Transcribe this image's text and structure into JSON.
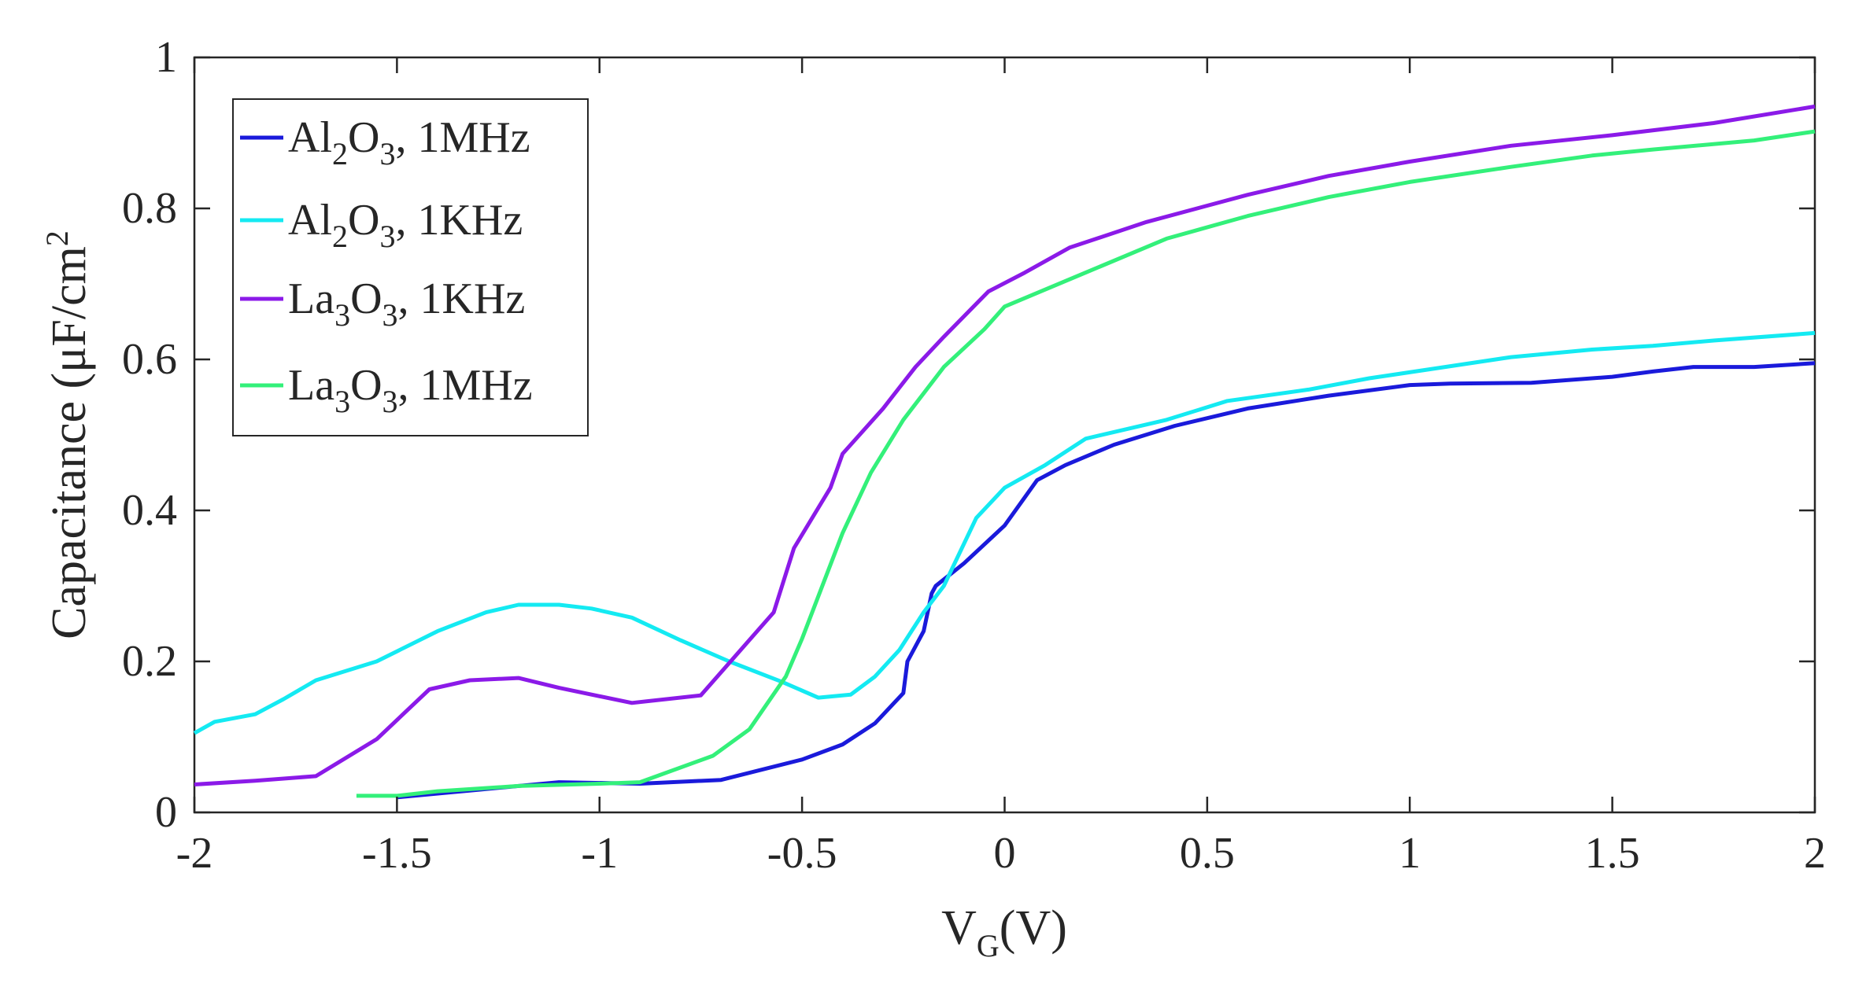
{
  "chart_data": {
    "type": "line",
    "title": "",
    "xlabel": {
      "base": "V",
      "sub": "G",
      "rest": "(V)"
    },
    "ylabel": {
      "text": "Capacitance (μF/cm",
      "sup": "2"
    },
    "xlim": [
      -2,
      2
    ],
    "ylim": [
      0,
      1
    ],
    "x_ticks": [
      -2,
      -1.5,
      -1,
      -0.5,
      0,
      0.5,
      1,
      1.5,
      2
    ],
    "x_tick_labels": [
      "-2",
      "-1.5",
      "-1",
      "-0.5",
      "0",
      "0.5",
      "1",
      "1.5",
      "2"
    ],
    "y_ticks": [
      0,
      0.2,
      0.4,
      0.6,
      0.8,
      1
    ],
    "y_tick_labels": [
      "0",
      "0.2",
      "0.4",
      "0.6",
      "0.8",
      "1"
    ],
    "grid": false,
    "legend_position": "top-left",
    "series": [
      {
        "name": "Al2O3, 1MHz",
        "legend": {
          "a": "Al",
          "a_sub": "2",
          "b": "O",
          "b_sub": "3",
          "rest": ", 1MHz"
        },
        "color": "#1a1adb",
        "x": [
          -1.5,
          -1.3,
          -1.1,
          -0.9,
          -0.7,
          -0.5,
          -0.4,
          -0.32,
          -0.25,
          -0.24,
          -0.2,
          -0.18,
          -0.17,
          -0.1,
          0,
          0.08,
          0.15,
          0.27,
          0.42,
          0.6,
          0.8,
          1.0,
          1.1,
          1.3,
          1.5,
          1.6,
          1.7,
          1.85,
          2.0
        ],
        "y": [
          0.02,
          0.03,
          0.04,
          0.038,
          0.043,
          0.07,
          0.09,
          0.118,
          0.158,
          0.2,
          0.24,
          0.29,
          0.3,
          0.33,
          0.38,
          0.44,
          0.46,
          0.487,
          0.512,
          0.535,
          0.552,
          0.566,
          0.568,
          0.569,
          0.577,
          0.584,
          0.59,
          0.59,
          0.595
        ]
      },
      {
        "name": "Al2O3, 1KHz",
        "legend": {
          "a": "Al",
          "a_sub": "2",
          "b": "O",
          "b_sub": "3",
          "rest": ", 1KHz"
        },
        "color": "#14eaf2",
        "x": [
          -2.0,
          -1.95,
          -1.85,
          -1.78,
          -1.7,
          -1.55,
          -1.4,
          -1.28,
          -1.2,
          -1.1,
          -1.02,
          -0.92,
          -0.8,
          -0.68,
          -0.55,
          -0.46,
          -0.38,
          -0.32,
          -0.26,
          -0.2,
          -0.15,
          -0.07,
          0,
          0.1,
          0.2,
          0.4,
          0.55,
          0.75,
          0.9,
          1.05,
          1.25,
          1.45,
          1.6,
          1.75,
          2.0
        ],
        "y": [
          0.105,
          0.12,
          0.13,
          0.15,
          0.175,
          0.2,
          0.24,
          0.265,
          0.275,
          0.275,
          0.27,
          0.258,
          0.228,
          0.2,
          0.173,
          0.152,
          0.156,
          0.18,
          0.215,
          0.265,
          0.3,
          0.39,
          0.43,
          0.46,
          0.495,
          0.52,
          0.545,
          0.56,
          0.575,
          0.587,
          0.603,
          0.613,
          0.618,
          0.625,
          0.635
        ]
      },
      {
        "name": "La3O3, 1KHz",
        "legend": {
          "a": "La",
          "a_sub": "3",
          "b": "O",
          "b_sub": "3",
          "rest": ", 1KHz"
        },
        "color": "#8b1ae8",
        "x": [
          -2.0,
          -1.85,
          -1.7,
          -1.55,
          -1.42,
          -1.32,
          -1.2,
          -1.1,
          -0.92,
          -0.75,
          -0.57,
          -0.52,
          -0.43,
          -0.4,
          -0.3,
          -0.22,
          -0.15,
          -0.04,
          0.05,
          0.16,
          0.35,
          0.6,
          0.8,
          1.0,
          1.25,
          1.5,
          1.75,
          2.0
        ],
        "y": [
          0.037,
          0.042,
          0.048,
          0.097,
          0.163,
          0.175,
          0.178,
          0.165,
          0.145,
          0.155,
          0.265,
          0.35,
          0.43,
          0.475,
          0.535,
          0.59,
          0.63,
          0.69,
          0.715,
          0.748,
          0.782,
          0.818,
          0.843,
          0.862,
          0.883,
          0.897,
          0.913,
          0.935
        ]
      },
      {
        "name": "La3O3, 1MHz",
        "legend": {
          "a": "La",
          "a_sub": "3",
          "b": "O",
          "b_sub": "3",
          "rest": ", 1MHz"
        },
        "color": "#33f07a",
        "x": [
          -1.6,
          -1.5,
          -1.4,
          -1.2,
          -1.0,
          -0.9,
          -0.72,
          -0.63,
          -0.54,
          -0.5,
          -0.4,
          -0.33,
          -0.25,
          -0.15,
          -0.05,
          0,
          0.2,
          0.4,
          0.6,
          0.8,
          1.0,
          1.25,
          1.45,
          1.6,
          1.85,
          2.0
        ],
        "y": [
          0.022,
          0.022,
          0.028,
          0.035,
          0.038,
          0.04,
          0.075,
          0.11,
          0.18,
          0.23,
          0.37,
          0.45,
          0.52,
          0.59,
          0.64,
          0.67,
          0.715,
          0.76,
          0.79,
          0.815,
          0.835,
          0.855,
          0.87,
          0.878,
          0.89,
          0.902
        ]
      }
    ]
  }
}
